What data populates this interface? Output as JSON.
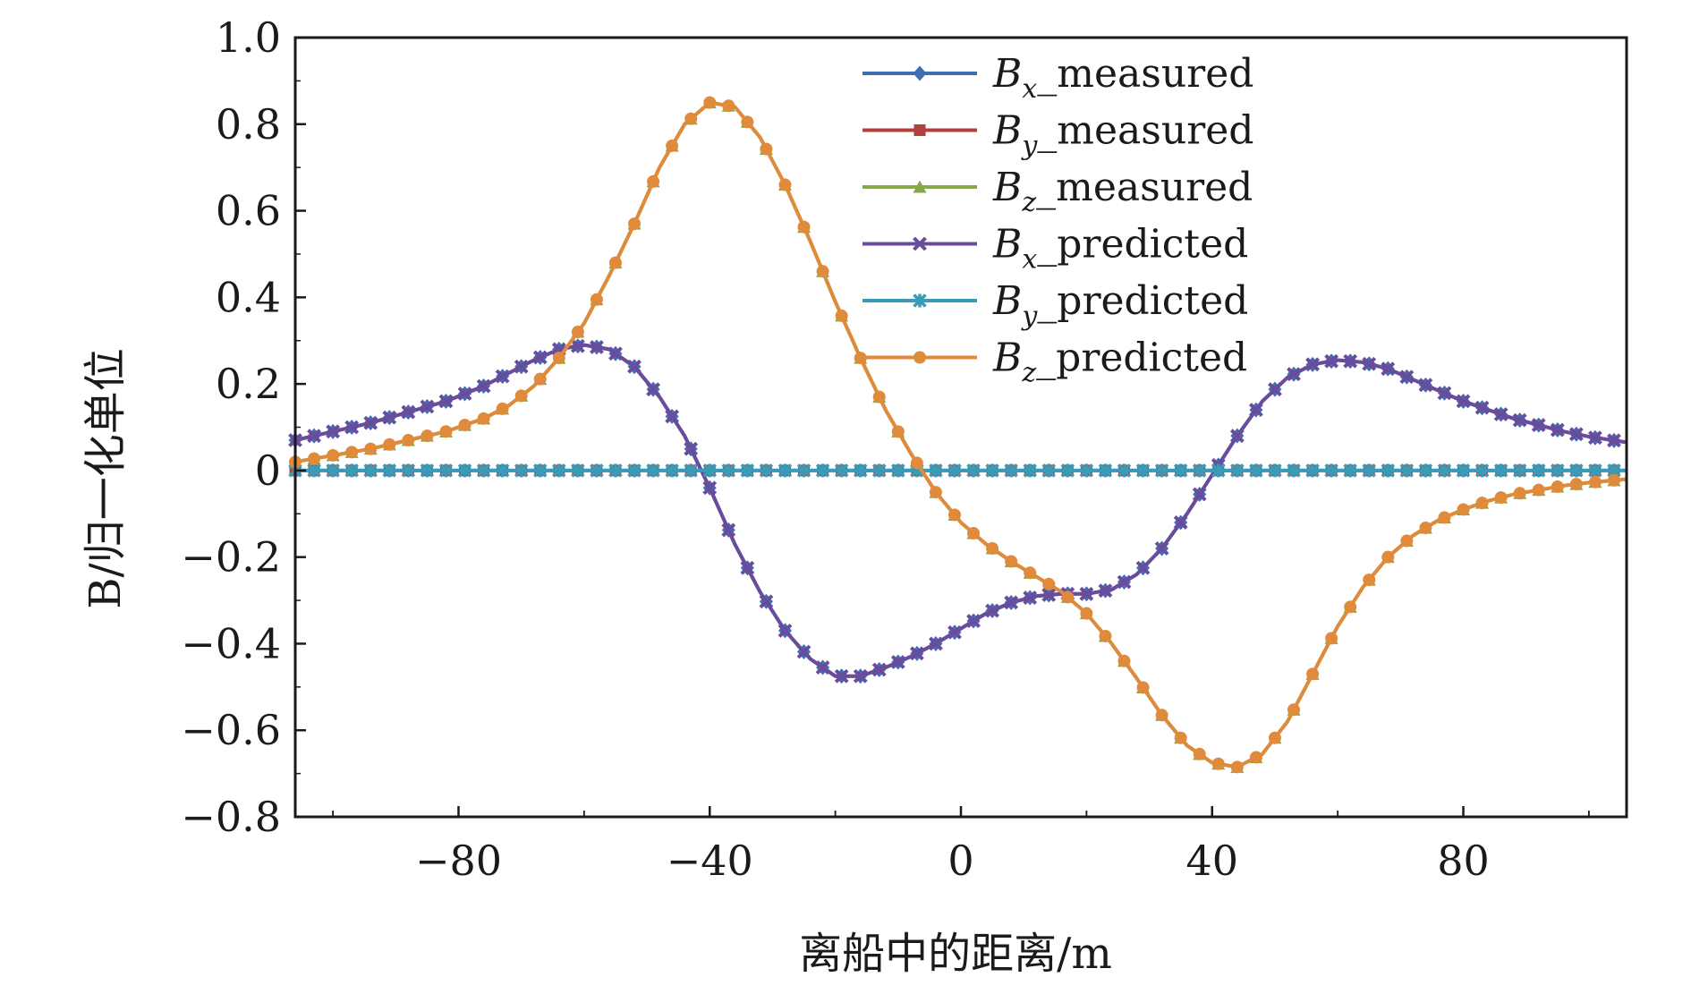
{
  "chart_data": {
    "type": "line",
    "xlabel": "离船中的距离/m",
    "ylabel": "B/归一化单位",
    "xlim": [
      -106,
      106
    ],
    "ylim": [
      -0.8,
      1.0
    ],
    "xticks": [
      -80,
      -40,
      0,
      40,
      80
    ],
    "xtick_labels": [
      "−80",
      "−40",
      "0",
      "40",
      "80"
    ],
    "yticks": [
      1.0,
      0.8,
      0.6,
      0.4,
      0.2,
      0,
      -0.2,
      -0.4,
      -0.6,
      -0.8
    ],
    "ytick_labels": [
      "1.0",
      "0.8",
      "0.6",
      "0.4",
      "0.2",
      "0",
      "−0.2",
      "−0.4",
      "−0.6",
      "−0.8"
    ],
    "legend_position": "top-right",
    "grid": false,
    "series": [
      {
        "name": "Bx_measured",
        "sym": "B",
        "sub": "x",
        "suffix": "_measured",
        "color": "#3f6fb0",
        "marker": "diamond",
        "points": [
          [
            -106,
            0.07
          ],
          [
            -100,
            0.09
          ],
          [
            -94,
            0.11
          ],
          [
            -88,
            0.135
          ],
          [
            -82,
            0.16
          ],
          [
            -76,
            0.195
          ],
          [
            -72,
            0.225
          ],
          [
            -68,
            0.255
          ],
          [
            -64,
            0.28
          ],
          [
            -60,
            0.29
          ],
          [
            -56,
            0.28
          ],
          [
            -52,
            0.24
          ],
          [
            -48,
            0.17
          ],
          [
            -44,
            0.08
          ],
          [
            -40,
            -0.04
          ],
          [
            -36,
            -0.17
          ],
          [
            -32,
            -0.28
          ],
          [
            -28,
            -0.37
          ],
          [
            -24,
            -0.435
          ],
          [
            -20,
            -0.475
          ],
          [
            -16,
            -0.475
          ],
          [
            -12,
            -0.455
          ],
          [
            -8,
            -0.43
          ],
          [
            -4,
            -0.4
          ],
          [
            0,
            -0.365
          ],
          [
            4,
            -0.33
          ],
          [
            8,
            -0.305
          ],
          [
            12,
            -0.29
          ],
          [
            16,
            -0.285
          ],
          [
            20,
            -0.285
          ],
          [
            24,
            -0.275
          ],
          [
            28,
            -0.24
          ],
          [
            32,
            -0.18
          ],
          [
            36,
            -0.1
          ],
          [
            40,
            -0.01
          ],
          [
            44,
            0.08
          ],
          [
            48,
            0.16
          ],
          [
            52,
            0.215
          ],
          [
            56,
            0.245
          ],
          [
            60,
            0.255
          ],
          [
            64,
            0.25
          ],
          [
            68,
            0.235
          ],
          [
            72,
            0.21
          ],
          [
            76,
            0.185
          ],
          [
            80,
            0.16
          ],
          [
            84,
            0.14
          ],
          [
            88,
            0.12
          ],
          [
            92,
            0.105
          ],
          [
            96,
            0.09
          ],
          [
            100,
            0.078
          ],
          [
            106,
            0.065
          ]
        ]
      },
      {
        "name": "By_measured",
        "sym": "B",
        "sub": "y",
        "suffix": "_measured",
        "color": "#b0413e",
        "marker": "square",
        "points": [
          [
            -106,
            0
          ],
          [
            -80,
            0
          ],
          [
            -40,
            0
          ],
          [
            0,
            0
          ],
          [
            40,
            0
          ],
          [
            80,
            0
          ],
          [
            106,
            0
          ]
        ]
      },
      {
        "name": "Bz_measured",
        "sym": "B",
        "sub": "z",
        "suffix": "_measured",
        "color": "#86a84a",
        "marker": "triangle",
        "points": [
          [
            -106,
            0.02
          ],
          [
            -100,
            0.035
          ],
          [
            -94,
            0.05
          ],
          [
            -88,
            0.07
          ],
          [
            -82,
            0.09
          ],
          [
            -76,
            0.12
          ],
          [
            -72,
            0.15
          ],
          [
            -68,
            0.195
          ],
          [
            -64,
            0.26
          ],
          [
            -60,
            0.34
          ],
          [
            -56,
            0.45
          ],
          [
            -52,
            0.57
          ],
          [
            -48,
            0.7
          ],
          [
            -44,
            0.8
          ],
          [
            -40,
            0.85
          ],
          [
            -36,
            0.84
          ],
          [
            -32,
            0.77
          ],
          [
            -28,
            0.66
          ],
          [
            -24,
            0.53
          ],
          [
            -20,
            0.39
          ],
          [
            -16,
            0.26
          ],
          [
            -12,
            0.14
          ],
          [
            -8,
            0.04
          ],
          [
            -4,
            -0.05
          ],
          [
            0,
            -0.12
          ],
          [
            4,
            -0.17
          ],
          [
            8,
            -0.21
          ],
          [
            12,
            -0.245
          ],
          [
            16,
            -0.28
          ],
          [
            20,
            -0.33
          ],
          [
            24,
            -0.4
          ],
          [
            28,
            -0.48
          ],
          [
            32,
            -0.565
          ],
          [
            36,
            -0.635
          ],
          [
            40,
            -0.675
          ],
          [
            44,
            -0.685
          ],
          [
            48,
            -0.655
          ],
          [
            52,
            -0.58
          ],
          [
            56,
            -0.47
          ],
          [
            60,
            -0.36
          ],
          [
            64,
            -0.27
          ],
          [
            68,
            -0.2
          ],
          [
            72,
            -0.15
          ],
          [
            76,
            -0.115
          ],
          [
            80,
            -0.09
          ],
          [
            84,
            -0.07
          ],
          [
            88,
            -0.055
          ],
          [
            92,
            -0.045
          ],
          [
            96,
            -0.035
          ],
          [
            100,
            -0.028
          ],
          [
            106,
            -0.02
          ]
        ]
      },
      {
        "name": "Bx_predicted",
        "sym": "B",
        "sub": "x",
        "suffix": "_predicted",
        "color": "#6a4c9c",
        "marker": "x",
        "points": [
          [
            -106,
            0.07
          ],
          [
            -100,
            0.09
          ],
          [
            -94,
            0.11
          ],
          [
            -88,
            0.135
          ],
          [
            -82,
            0.16
          ],
          [
            -76,
            0.195
          ],
          [
            -72,
            0.225
          ],
          [
            -68,
            0.255
          ],
          [
            -64,
            0.28
          ],
          [
            -60,
            0.29
          ],
          [
            -56,
            0.28
          ],
          [
            -52,
            0.24
          ],
          [
            -48,
            0.17
          ],
          [
            -44,
            0.08
          ],
          [
            -40,
            -0.04
          ],
          [
            -36,
            -0.17
          ],
          [
            -32,
            -0.28
          ],
          [
            -28,
            -0.37
          ],
          [
            -24,
            -0.435
          ],
          [
            -20,
            -0.475
          ],
          [
            -16,
            -0.475
          ],
          [
            -12,
            -0.455
          ],
          [
            -8,
            -0.43
          ],
          [
            -4,
            -0.4
          ],
          [
            0,
            -0.365
          ],
          [
            4,
            -0.33
          ],
          [
            8,
            -0.305
          ],
          [
            12,
            -0.29
          ],
          [
            16,
            -0.285
          ],
          [
            20,
            -0.285
          ],
          [
            24,
            -0.275
          ],
          [
            28,
            -0.24
          ],
          [
            32,
            -0.18
          ],
          [
            36,
            -0.1
          ],
          [
            40,
            -0.01
          ],
          [
            44,
            0.08
          ],
          [
            48,
            0.16
          ],
          [
            52,
            0.215
          ],
          [
            56,
            0.245
          ],
          [
            60,
            0.255
          ],
          [
            64,
            0.25
          ],
          [
            68,
            0.235
          ],
          [
            72,
            0.21
          ],
          [
            76,
            0.185
          ],
          [
            80,
            0.16
          ],
          [
            84,
            0.14
          ],
          [
            88,
            0.12
          ],
          [
            92,
            0.105
          ],
          [
            96,
            0.09
          ],
          [
            100,
            0.078
          ],
          [
            106,
            0.065
          ]
        ]
      },
      {
        "name": "By_predicted",
        "sym": "B",
        "sub": "y",
        "suffix": "_predicted",
        "color": "#3a9bb8",
        "marker": "star",
        "points": [
          [
            -106,
            0
          ],
          [
            -80,
            0
          ],
          [
            -40,
            0
          ],
          [
            0,
            0
          ],
          [
            40,
            0
          ],
          [
            80,
            0
          ],
          [
            106,
            0
          ]
        ]
      },
      {
        "name": "Bz_predicted",
        "sym": "B",
        "sub": "z",
        "suffix": "_predicted",
        "color": "#e08a3c",
        "marker": "circle",
        "points": [
          [
            -106,
            0.02
          ],
          [
            -100,
            0.035
          ],
          [
            -94,
            0.05
          ],
          [
            -88,
            0.07
          ],
          [
            -82,
            0.09
          ],
          [
            -76,
            0.12
          ],
          [
            -72,
            0.15
          ],
          [
            -68,
            0.195
          ],
          [
            -64,
            0.26
          ],
          [
            -60,
            0.34
          ],
          [
            -56,
            0.45
          ],
          [
            -52,
            0.57
          ],
          [
            -48,
            0.7
          ],
          [
            -44,
            0.8
          ],
          [
            -40,
            0.85
          ],
          [
            -36,
            0.84
          ],
          [
            -32,
            0.77
          ],
          [
            -28,
            0.66
          ],
          [
            -24,
            0.53
          ],
          [
            -20,
            0.39
          ],
          [
            -16,
            0.26
          ],
          [
            -12,
            0.14
          ],
          [
            -8,
            0.04
          ],
          [
            -4,
            -0.05
          ],
          [
            0,
            -0.12
          ],
          [
            4,
            -0.17
          ],
          [
            8,
            -0.21
          ],
          [
            12,
            -0.245
          ],
          [
            16,
            -0.28
          ],
          [
            20,
            -0.33
          ],
          [
            24,
            -0.4
          ],
          [
            28,
            -0.48
          ],
          [
            32,
            -0.565
          ],
          [
            36,
            -0.635
          ],
          [
            40,
            -0.675
          ],
          [
            44,
            -0.685
          ],
          [
            48,
            -0.655
          ],
          [
            52,
            -0.58
          ],
          [
            56,
            -0.47
          ],
          [
            60,
            -0.36
          ],
          [
            64,
            -0.27
          ],
          [
            68,
            -0.2
          ],
          [
            72,
            -0.15
          ],
          [
            76,
            -0.115
          ],
          [
            80,
            -0.09
          ],
          [
            84,
            -0.07
          ],
          [
            88,
            -0.055
          ],
          [
            92,
            -0.045
          ],
          [
            96,
            -0.035
          ],
          [
            100,
            -0.028
          ],
          [
            106,
            -0.02
          ]
        ]
      }
    ]
  }
}
